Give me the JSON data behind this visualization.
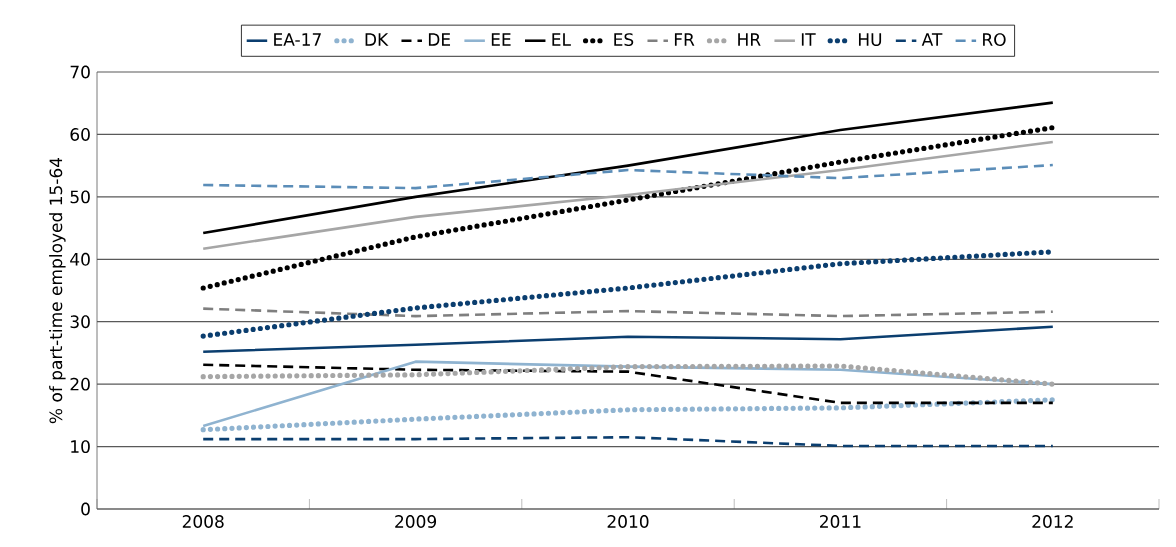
{
  "chart_data": {
    "type": "line",
    "ylabel": "% of part-time employed 15-64",
    "categories": [
      "2008",
      "2009",
      "2010",
      "2011",
      "2012"
    ],
    "ylim": [
      0,
      70
    ],
    "yticks": [
      0,
      10,
      20,
      30,
      40,
      50,
      60,
      70
    ],
    "grid": "y",
    "legend": "top",
    "marker": "none",
    "series": [
      {
        "name": "EA-17",
        "color": "#0b3e6f",
        "line_style": "solid",
        "values": [
          25.2,
          26.3,
          27.6,
          27.2,
          29.2
        ]
      },
      {
        "name": "DK",
        "color": "#8fb3d0",
        "line_style": "dotted",
        "values": [
          12.7,
          14.4,
          15.9,
          16.2,
          17.5
        ]
      },
      {
        "name": "DE",
        "color": "#000000",
        "line_style": "dashed",
        "values": [
          23.1,
          22.3,
          22.0,
          17.0,
          17.0
        ]
      },
      {
        "name": "EE",
        "color": "#8fb3d0",
        "line_style": "solid",
        "values": [
          13.3,
          23.6,
          22.8,
          22.3,
          20.0
        ]
      },
      {
        "name": "EL",
        "color": "#000000",
        "line_style": "solid",
        "values": [
          44.2,
          50.0,
          55.0,
          60.7,
          65.1
        ]
      },
      {
        "name": "ES",
        "color": "#000000",
        "line_style": "dotted",
        "values": [
          35.4,
          43.6,
          49.5,
          55.6,
          61.1
        ]
      },
      {
        "name": "FR",
        "color": "#7f7f7f",
        "line_style": "dashed",
        "values": [
          32.1,
          30.9,
          31.7,
          30.9,
          31.6
        ]
      },
      {
        "name": "HR",
        "color": "#a6a6a6",
        "line_style": "dotted",
        "values": [
          21.2,
          21.5,
          22.8,
          22.9,
          20.0
        ]
      },
      {
        "name": "IT",
        "color": "#a6a6a6",
        "line_style": "solid",
        "values": [
          41.7,
          46.8,
          50.3,
          54.3,
          58.8
        ]
      },
      {
        "name": "HU",
        "color": "#0b3e6f",
        "line_style": "dotted",
        "values": [
          27.7,
          32.2,
          35.4,
          39.3,
          41.2
        ]
      },
      {
        "name": "AT",
        "color": "#0b3e6f",
        "line_style": "dashed",
        "values": [
          11.2,
          11.2,
          11.5,
          10.1,
          10.1
        ]
      },
      {
        "name": "RO",
        "color": "#5b8db8",
        "line_style": "dashed",
        "values": [
          51.9,
          51.4,
          54.3,
          53.0,
          55.1
        ]
      }
    ]
  }
}
